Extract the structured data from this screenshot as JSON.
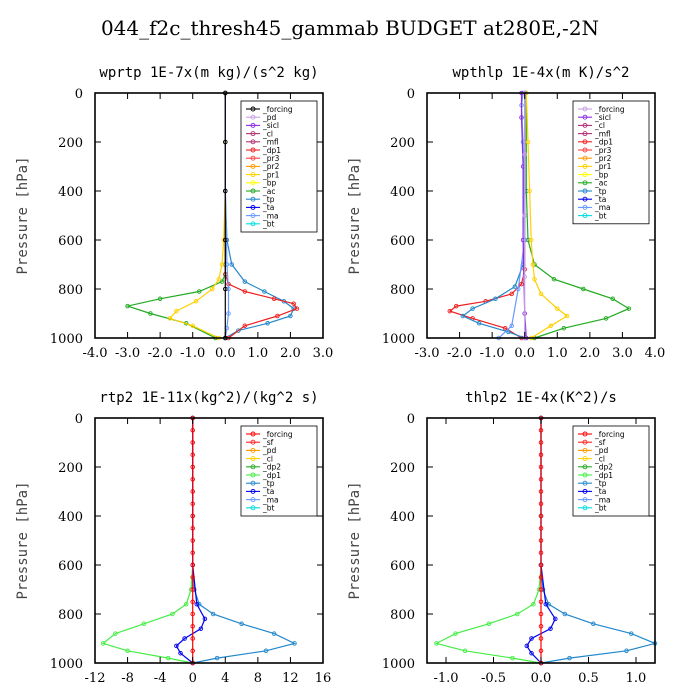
{
  "suptitle": "044_f2c_thresh45_gammab  BUDGET at280E,-2N",
  "colors": {
    "forcing": "#000000",
    "pd": "#c8a0e6",
    "sicl": "#8a2be2",
    "cl": "#b03070",
    "mfl": "#b03070",
    "dp1": "#ee2020",
    "pr3": "#ff4040",
    "pr2": "#ff9900",
    "pr1": "#ffd000",
    "bp": "#ffff00",
    "ac": "#22aa22",
    "tp": "#2288cc",
    "ta": "#0000ee",
    "ma": "#6699ff",
    "bt": "#00dddd",
    "sf": "#ff2020",
    "dp2": "#22aa22",
    "dp1g": "#44ee44",
    "forcing_red": "#ff0000"
  },
  "chart_data": [
    {
      "type": "line",
      "title": "wprtp   1E-7x(m kg)/(s^2 kg)",
      "ylabel": "Pressure [hPa]",
      "xlim": [
        -4,
        3
      ],
      "ylim": [
        1000,
        0
      ],
      "xticks": [
        "-4.0",
        "-3.0",
        "-2.0",
        "-1.0",
        "0.0",
        "1.0",
        "2.0",
        "3.0"
      ],
      "xtick_values": [
        -4,
        -3,
        -2,
        -1,
        0,
        1,
        2,
        3
      ],
      "yticks": [
        "0",
        "200",
        "400",
        "600",
        "800",
        "1000"
      ],
      "ytick_values": [
        0,
        200,
        400,
        600,
        800,
        1000
      ],
      "legend": [
        "_forcing",
        "_pd",
        "_sicl",
        "_cl",
        "_mfl",
        "_dp1",
        "_pr3",
        "_pr2",
        "_pr1",
        "_bp",
        "_ac",
        "_tp",
        "_ta",
        "_ma",
        "_bt"
      ],
      "legend_colors": [
        "#000000",
        "#c8a0e6",
        "#8a2be2",
        "#b03070",
        "#b03070",
        "#ee2020",
        "#ff4040",
        "#ff9900",
        "#ffd000",
        "#ffff00",
        "#22aa22",
        "#2288cc",
        "#0000ee",
        "#6699ff",
        "#00dddd"
      ],
      "legend_placement": "top-right",
      "series": [
        {
          "name": "_ac",
          "color": "#22aa22",
          "x": [
            0,
            0,
            0,
            0,
            0,
            0,
            -0.1,
            -0.8,
            -2.0,
            -3.0,
            -2.3,
            -1.2,
            -0.3
          ],
          "y": [
            0,
            200,
            400,
            600,
            700,
            740,
            770,
            810,
            840,
            870,
            900,
            940,
            1000
          ]
        },
        {
          "name": "_pr1",
          "color": "#ffd000",
          "x": [
            0,
            0,
            0,
            -0.05,
            -0.1,
            -0.2,
            -0.4,
            -0.9,
            -1.5,
            -1.7,
            -1.0,
            -0.2
          ],
          "y": [
            0,
            200,
            400,
            600,
            700,
            760,
            800,
            850,
            890,
            920,
            950,
            1000
          ]
        },
        {
          "name": "_tp",
          "color": "#2288cc",
          "x": [
            0,
            0,
            0.05,
            0.2,
            0.6,
            1.2,
            1.8,
            2.1,
            2.0,
            1.3,
            0.4,
            0
          ],
          "y": [
            0,
            400,
            600,
            700,
            770,
            810,
            850,
            880,
            910,
            940,
            970,
            1000
          ]
        },
        {
          "name": "_dp1",
          "color": "#ee2020",
          "x": [
            0,
            0,
            0,
            0.1,
            0.6,
            1.5,
            2.1,
            2.2,
            1.6,
            0.6,
            0.1
          ],
          "y": [
            0,
            600,
            740,
            780,
            810,
            840,
            860,
            880,
            910,
            950,
            1000
          ]
        },
        {
          "name": "_ma",
          "color": "#6699ff",
          "x": [
            0,
            0,
            0.05,
            0.1,
            0.1,
            0.05,
            0
          ],
          "y": [
            0,
            400,
            700,
            800,
            900,
            960,
            1000
          ]
        },
        {
          "name": "_forcing",
          "color": "#000000",
          "x": [
            0,
            0,
            0,
            0,
            0,
            0
          ],
          "y": [
            0,
            200,
            400,
            600,
            800,
            1000
          ]
        }
      ]
    },
    {
      "type": "line",
      "title": "wpthlp   1E-4x(m K)/s^2",
      "ylabel": "Pressure [hPa]",
      "xlim": [
        -3,
        4
      ],
      "ylim": [
        1000,
        0
      ],
      "xticks": [
        "-3.0",
        "-2.0",
        "-1.0",
        "0.0",
        "1.0",
        "2.0",
        "3.0",
        "4.0"
      ],
      "xtick_values": [
        -3,
        -2,
        -1,
        0,
        1,
        2,
        3,
        4
      ],
      "yticks": [
        "0",
        "200",
        "400",
        "600",
        "800",
        "1000"
      ],
      "ytick_values": [
        0,
        200,
        400,
        600,
        800,
        1000
      ],
      "legend": [
        "_forcing",
        "_sicl",
        "_cl",
        "_mfl",
        "_dp1",
        "_pr3",
        "_pr2",
        "_pr1",
        "_bp",
        "_ac",
        "_tp",
        "_ta",
        "_ma",
        "_bt"
      ],
      "legend_colors": [
        "#c8a0e6",
        "#8a2be2",
        "#b03070",
        "#b03070",
        "#ee2020",
        "#ff4040",
        "#ff9900",
        "#ffd000",
        "#ffff00",
        "#22aa22",
        "#2288cc",
        "#0000ee",
        "#6699ff",
        "#00dddd"
      ],
      "legend_placement": "top-right",
      "series": [
        {
          "name": "_ac",
          "color": "#22aa22",
          "x": [
            0.05,
            0.05,
            0.05,
            0.1,
            0.3,
            0.9,
            1.8,
            2.7,
            3.2,
            2.5,
            1.2,
            0.3
          ],
          "y": [
            0,
            200,
            400,
            600,
            700,
            760,
            800,
            840,
            880,
            920,
            960,
            1000
          ]
        },
        {
          "name": "_pr1",
          "color": "#ffd000",
          "x": [
            0.05,
            0.1,
            0.15,
            0.2,
            0.25,
            0.3,
            0.5,
            1.0,
            1.3,
            0.8,
            0.2
          ],
          "y": [
            0,
            200,
            400,
            600,
            700,
            760,
            820,
            880,
            910,
            950,
            1000
          ]
        },
        {
          "name": "_dp1",
          "color": "#ee2020",
          "x": [
            0,
            0,
            0,
            -0.1,
            -0.4,
            -1.2,
            -2.1,
            -2.3,
            -1.6,
            -0.6,
            -0.1
          ],
          "y": [
            0,
            600,
            720,
            780,
            820,
            850,
            870,
            890,
            920,
            960,
            1000
          ]
        },
        {
          "name": "_tp",
          "color": "#2288cc",
          "x": [
            0,
            0,
            0,
            -0.05,
            -0.3,
            -0.9,
            -1.6,
            -1.9,
            -1.4,
            -0.5,
            0
          ],
          "y": [
            0,
            400,
            600,
            700,
            790,
            840,
            880,
            910,
            940,
            975,
            1000
          ]
        },
        {
          "name": "_ma",
          "color": "#6699ff",
          "x": [
            -0.05,
            -0.1,
            -0.05,
            0,
            -0.2,
            -0.4,
            -0.8
          ],
          "y": [
            0,
            50,
            200,
            600,
            800,
            950,
            1000
          ]
        },
        {
          "name": "_sicl",
          "color": "#8a2be2",
          "x": [
            -0.1,
            -0.1,
            -0.05,
            -0.05,
            0,
            0.05
          ],
          "y": [
            0,
            100,
            300,
            600,
            900,
            1000
          ]
        },
        {
          "name": "_pd",
          "color": "#c8a0e6",
          "x": [
            0,
            0,
            0,
            0,
            0
          ],
          "y": [
            0,
            250,
            500,
            750,
            1000
          ]
        }
      ]
    },
    {
      "type": "line",
      "title": "rtp2   1E-11x(kg^2)/(kg^2 s)",
      "ylabel": "Pressure [hPa]",
      "xlim": [
        -12,
        16
      ],
      "ylim": [
        1000,
        0
      ],
      "xticks": [
        "-12",
        "-8",
        "-4",
        "0",
        "4",
        "8",
        "12",
        "16"
      ],
      "xtick_values": [
        -12,
        -8,
        -4,
        0,
        4,
        8,
        12,
        16
      ],
      "yticks": [
        "0",
        "200",
        "400",
        "600",
        "800",
        "1000"
      ],
      "ytick_values": [
        0,
        200,
        400,
        600,
        800,
        1000
      ],
      "legend": [
        "_forcing",
        "_sf",
        "_pd",
        "_cl",
        "_dp2",
        "_dp1",
        "_tp",
        "_ta",
        "_ma",
        "_bt"
      ],
      "legend_colors": [
        "#ff0000",
        "#ff2020",
        "#ff9900",
        "#ffd000",
        "#22aa22",
        "#44ee44",
        "#2288cc",
        "#0000ee",
        "#6699ff",
        "#00dddd"
      ],
      "legend_placement": "top-right",
      "series": [
        {
          "name": "_dp1",
          "color": "#44ee44",
          "x": [
            0,
            0,
            0,
            -0.2,
            -0.8,
            -2.5,
            -6,
            -9.5,
            -11,
            -8,
            -3,
            0
          ],
          "y": [
            0,
            400,
            600,
            700,
            760,
            800,
            840,
            880,
            920,
            950,
            980,
            1000
          ]
        },
        {
          "name": "_tp",
          "color": "#2288cc",
          "x": [
            0,
            0,
            0,
            0.2,
            0.8,
            2.5,
            6,
            10,
            12.5,
            9,
            3,
            0
          ],
          "y": [
            0,
            400,
            600,
            700,
            760,
            800,
            840,
            880,
            920,
            950,
            980,
            1000
          ]
        },
        {
          "name": "_ta",
          "color": "#0000ee",
          "x": [
            0,
            0,
            0.5,
            1.5,
            1,
            -1,
            -2,
            -1.5,
            0
          ],
          "y": [
            0,
            600,
            760,
            820,
            860,
            900,
            930,
            960,
            1000
          ]
        },
        {
          "name": "_forcing",
          "color": "#ff0000",
          "x": [
            0,
            0,
            0,
            0,
            0,
            0,
            0,
            0,
            0,
            0,
            0,
            0,
            0,
            0,
            0,
            0,
            0,
            0,
            0,
            0,
            0
          ],
          "y": [
            0,
            50,
            100,
            150,
            200,
            250,
            300,
            350,
            400,
            450,
            500,
            550,
            600,
            650,
            700,
            750,
            800,
            850,
            900,
            950,
            1000
          ]
        }
      ]
    },
    {
      "type": "line",
      "title": "thlp2   1E-4x(K^2)/s",
      "ylabel": "Pressure [hPa]",
      "xlim": [
        -1.2,
        1.2
      ],
      "ylim": [
        1000,
        0
      ],
      "xticks": [
        "-1.0",
        "-0.5",
        "0.0",
        "0.5",
        "1.0"
      ],
      "xtick_values": [
        -1,
        -0.5,
        0,
        0.5,
        1
      ],
      "yticks": [
        "0",
        "200",
        "400",
        "600",
        "800",
        "1000"
      ],
      "ytick_values": [
        0,
        200,
        400,
        600,
        800,
        1000
      ],
      "legend": [
        "_forcing",
        "_sf",
        "_pd",
        "_cl",
        "_dp2",
        "_dp1",
        "_tp",
        "_ta",
        "_ma",
        "_bt"
      ],
      "legend_colors": [
        "#ff0000",
        "#ff2020",
        "#ff9900",
        "#ffd000",
        "#22aa22",
        "#44ee44",
        "#2288cc",
        "#0000ee",
        "#6699ff",
        "#00dddd"
      ],
      "legend_placement": "top-right",
      "series": [
        {
          "name": "_dp1",
          "color": "#44ee44",
          "x": [
            0,
            0,
            0,
            -0.02,
            -0.08,
            -0.25,
            -0.55,
            -0.9,
            -1.1,
            -0.8,
            -0.3,
            0
          ],
          "y": [
            0,
            400,
            600,
            700,
            760,
            800,
            840,
            880,
            920,
            950,
            980,
            1000
          ]
        },
        {
          "name": "_tp",
          "color": "#2288cc",
          "x": [
            0,
            0,
            0,
            0.02,
            0.08,
            0.25,
            0.55,
            0.95,
            1.2,
            0.9,
            0.3,
            0
          ],
          "y": [
            0,
            400,
            600,
            700,
            760,
            800,
            840,
            880,
            920,
            950,
            980,
            1000
          ]
        },
        {
          "name": "_ta",
          "color": "#0000ee",
          "x": [
            0,
            0,
            0.05,
            0.15,
            0.1,
            -0.1,
            -0.15,
            -0.1,
            0
          ],
          "y": [
            0,
            600,
            760,
            820,
            860,
            900,
            930,
            960,
            1000
          ]
        },
        {
          "name": "_forcing",
          "color": "#ff0000",
          "x": [
            0,
            0,
            0,
            0,
            0,
            0,
            0,
            0,
            0,
            0,
            0,
            0,
            0,
            0,
            0,
            0,
            0,
            0,
            0,
            0,
            0
          ],
          "y": [
            0,
            50,
            100,
            150,
            200,
            250,
            300,
            350,
            400,
            450,
            500,
            550,
            600,
            650,
            700,
            750,
            800,
            850,
            900,
            950,
            1000
          ]
        }
      ]
    }
  ]
}
